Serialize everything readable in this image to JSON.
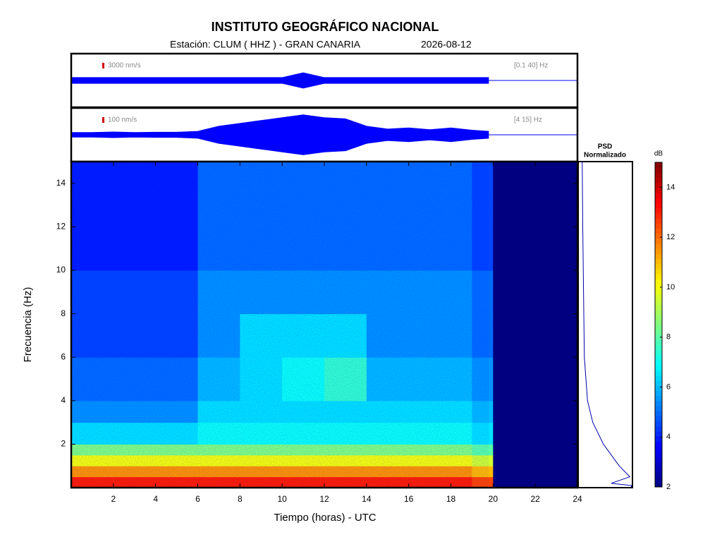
{
  "chart_data": [
    {
      "type": "trace",
      "label": "3000 nm/s",
      "filter": "[0.1 40] Hz",
      "x": [
        0,
        1,
        2,
        3,
        4,
        5,
        6,
        7,
        8,
        9,
        10,
        11,
        12,
        13,
        14,
        15,
        16,
        17,
        18,
        19,
        19.8
      ],
      "values": [
        1500,
        1500,
        1500,
        1500,
        1500,
        1500,
        1500,
        1500,
        1500,
        1500,
        1500,
        4000,
        1500,
        1500,
        1500,
        1500,
        1500,
        1500,
        1500,
        1500,
        1500
      ],
      "xlim": [
        0,
        24
      ],
      "ylim": [
        -14000,
        14000
      ],
      "color": "#0000ff"
    },
    {
      "type": "trace",
      "label": "100 nm/s",
      "filter": "[4 15] Hz",
      "x": [
        0,
        1,
        2,
        3,
        4,
        5,
        6,
        7,
        8,
        9,
        10,
        11,
        12,
        13,
        14,
        15,
        16,
        17,
        18,
        19,
        19.8
      ],
      "values": [
        40,
        40,
        50,
        40,
        45,
        45,
        60,
        150,
        200,
        250,
        300,
        350,
        300,
        280,
        150,
        100,
        120,
        90,
        120,
        80,
        60
      ],
      "xlim": [
        0,
        24
      ],
      "ylim": [
        -470,
        470
      ],
      "color": "#0000ff"
    },
    {
      "type": "heatmap",
      "title": "INSTITUTO GEOGRÁFICO NACIONAL",
      "subtitle": "Estación:  CLUM ( HHZ ) - GRAN CANARIA",
      "date": "2026-08-12",
      "xlabel": "Tiempo (horas) - UTC",
      "ylabel": "Frecuencia  (Hz)",
      "x_edges": [
        0,
        1,
        2,
        3,
        4,
        5,
        6,
        7,
        8,
        9,
        10,
        11,
        12,
        13,
        14,
        15,
        16,
        17,
        18,
        19,
        20,
        21,
        22,
        23,
        24
      ],
      "y_edges": [
        0,
        0.5,
        1,
        1.5,
        2,
        3,
        4,
        6,
        8,
        10,
        15
      ],
      "values": [
        [
          13,
          13,
          13,
          13,
          13,
          13,
          13,
          13,
          13,
          13,
          13,
          13,
          13,
          13,
          13,
          13,
          13,
          13,
          13,
          12.5,
          2,
          2,
          2,
          2
        ],
        [
          11.5,
          11.5,
          11.5,
          11.5,
          11.5,
          11.5,
          11.5,
          11.5,
          11.5,
          11.5,
          11.5,
          11.5,
          11.5,
          11.5,
          11.5,
          11.5,
          11.5,
          11.5,
          11.5,
          11,
          2,
          2,
          2,
          2
        ],
        [
          10,
          10,
          10,
          10,
          10,
          10,
          10,
          10,
          10,
          10,
          10,
          10,
          10,
          10,
          10,
          10,
          10,
          10,
          10,
          9.5,
          2,
          2,
          2,
          2
        ],
        [
          8.5,
          8.5,
          8.5,
          8.5,
          8.5,
          8.5,
          8.5,
          8.5,
          8.5,
          8.5,
          8.5,
          8.5,
          8.5,
          8.5,
          8.5,
          8.5,
          8.5,
          8.5,
          8.5,
          8,
          2,
          2,
          2,
          2
        ],
        [
          6.5,
          6.5,
          6.5,
          6.5,
          6.5,
          6.5,
          7,
          7,
          7,
          7,
          7,
          7,
          7,
          7,
          7,
          7,
          7,
          7,
          7,
          6.5,
          2,
          2,
          2,
          2
        ],
        [
          5.5,
          5.5,
          5.5,
          5.5,
          5.5,
          5.5,
          6.5,
          6.5,
          6.5,
          6.5,
          6.5,
          6.5,
          6.5,
          6.5,
          6.5,
          6.5,
          6.5,
          6.5,
          6.5,
          6,
          2,
          2,
          2,
          2
        ],
        [
          5,
          5,
          5,
          5,
          5,
          5,
          6,
          6,
          6.5,
          6.5,
          7,
          7,
          7.5,
          7.5,
          6,
          6,
          6,
          6,
          6,
          5.5,
          2,
          2,
          2,
          2
        ],
        [
          4.5,
          4.5,
          4.5,
          4.5,
          4.5,
          4.5,
          5.5,
          5.5,
          6.5,
          6.5,
          6.5,
          6.5,
          6.5,
          6.5,
          5.5,
          5.5,
          5.5,
          5.5,
          5.5,
          5,
          2,
          2,
          2,
          2
        ],
        [
          4.5,
          4.5,
          4.5,
          4.5,
          4.5,
          4.5,
          5.5,
          5.5,
          5.5,
          5.5,
          5.5,
          5.5,
          5.5,
          5.5,
          5.5,
          5.5,
          5.5,
          5.5,
          5.5,
          5,
          2,
          2,
          2,
          2
        ],
        [
          4,
          4,
          4,
          4,
          4,
          4,
          5,
          5,
          5,
          5,
          5,
          5,
          5,
          5,
          5,
          5,
          5,
          5,
          5,
          4.5,
          2,
          2,
          2,
          2
        ]
      ],
      "xlim": [
        0,
        24
      ],
      "ylim": [
        0,
        15
      ],
      "xticks": [
        2,
        4,
        6,
        8,
        10,
        12,
        14,
        16,
        18,
        20,
        22,
        24
      ],
      "yticks": [
        2,
        4,
        6,
        8,
        10,
        12,
        14
      ]
    },
    {
      "type": "psd",
      "title": "PSD",
      "subtitle": "Normalizado",
      "frequencies": [
        0,
        0.1,
        0.2,
        0.5,
        1,
        1.5,
        2,
        3,
        4,
        6,
        8,
        10,
        12,
        15
      ],
      "values": [
        0.98,
        0.98,
        0.6,
        0.95,
        0.75,
        0.6,
        0.45,
        0.25,
        0.15,
        0.09,
        0.08,
        0.07,
        0.06,
        0.05
      ],
      "xlim": [
        0,
        1
      ],
      "ylim": [
        0,
        15
      ],
      "color": "#0000aa"
    },
    {
      "type": "colorbar",
      "label": "dB",
      "ylim": [
        2,
        15
      ],
      "yticks": [
        2,
        4,
        6,
        8,
        10,
        12,
        14
      ],
      "colormap": "jet"
    }
  ]
}
